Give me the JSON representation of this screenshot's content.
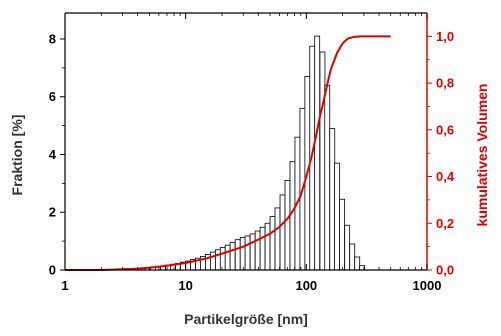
{
  "chart_data": {
    "type": "bar",
    "xlabel": "Partikelgröße [nm]",
    "ylabel": "Fraktion [%]",
    "y2label": "kumulatives Volumen",
    "x_scale": "log",
    "xlim": [
      1,
      1000
    ],
    "ylim": [
      0,
      8.9
    ],
    "y2lim": [
      0,
      1.1
    ],
    "x_ticks": [
      "1",
      "10",
      "100",
      "1000"
    ],
    "y_ticks": [
      "0",
      "2",
      "4",
      "6",
      "8"
    ],
    "y2_ticks": [
      "0,0",
      "0,2",
      "0,4",
      "0,6",
      "0,8",
      "1,0"
    ],
    "colors": {
      "bars_edge": "#000000",
      "bars_fill": "#ffffff",
      "cumulative": "#e00000",
      "right_axis": "#e00000"
    },
    "bins": {
      "x": [
        3.0,
        3.3,
        3.65,
        4.0,
        4.4,
        4.85,
        5.35,
        5.9,
        6.5,
        7.15,
        7.85,
        8.65,
        9.5,
        10.45,
        11.5,
        12.65,
        13.9,
        15.3,
        16.8,
        18.5,
        20.3,
        22.3,
        24.5,
        27.0,
        29.7,
        32.6,
        35.9,
        39.5,
        43.4,
        47.7,
        52.5,
        57.7,
        63.5,
        69.8,
        76.8,
        84.4,
        92.8,
        102,
        112,
        123,
        136,
        149,
        164,
        180,
        198,
        218,
        240,
        264,
        290
      ],
      "values": [
        0.02,
        0.03,
        0.04,
        0.05,
        0.06,
        0.08,
        0.1,
        0.12,
        0.14,
        0.17,
        0.2,
        0.23,
        0.27,
        0.31,
        0.36,
        0.41,
        0.47,
        0.54,
        0.62,
        0.7,
        0.78,
        0.86,
        0.95,
        1.05,
        1.12,
        1.18,
        1.25,
        1.35,
        1.48,
        1.62,
        1.85,
        2.15,
        2.6,
        3.1,
        3.75,
        4.6,
        5.6,
        6.7,
        7.75,
        8.1,
        7.55,
        6.4,
        4.9,
        3.7,
        2.45,
        1.55,
        0.9,
        0.45,
        0.15
      ]
    },
    "cumulative": {
      "x": [
        1,
        2,
        3,
        4,
        5,
        7,
        10,
        15,
        20,
        30,
        40,
        50,
        60,
        70,
        80,
        90,
        100,
        110,
        120,
        130,
        140,
        150,
        160,
        180,
        200,
        220,
        250,
        280,
        300,
        350,
        400,
        500
      ],
      "values": [
        0.0,
        0.0,
        0.003,
        0.006,
        0.01,
        0.018,
        0.03,
        0.05,
        0.07,
        0.1,
        0.13,
        0.155,
        0.185,
        0.22,
        0.265,
        0.32,
        0.4,
        0.48,
        0.57,
        0.66,
        0.73,
        0.8,
        0.86,
        0.93,
        0.97,
        0.99,
        0.998,
        1.0,
        1.0,
        1.0,
        1.0,
        1.0
      ]
    }
  }
}
